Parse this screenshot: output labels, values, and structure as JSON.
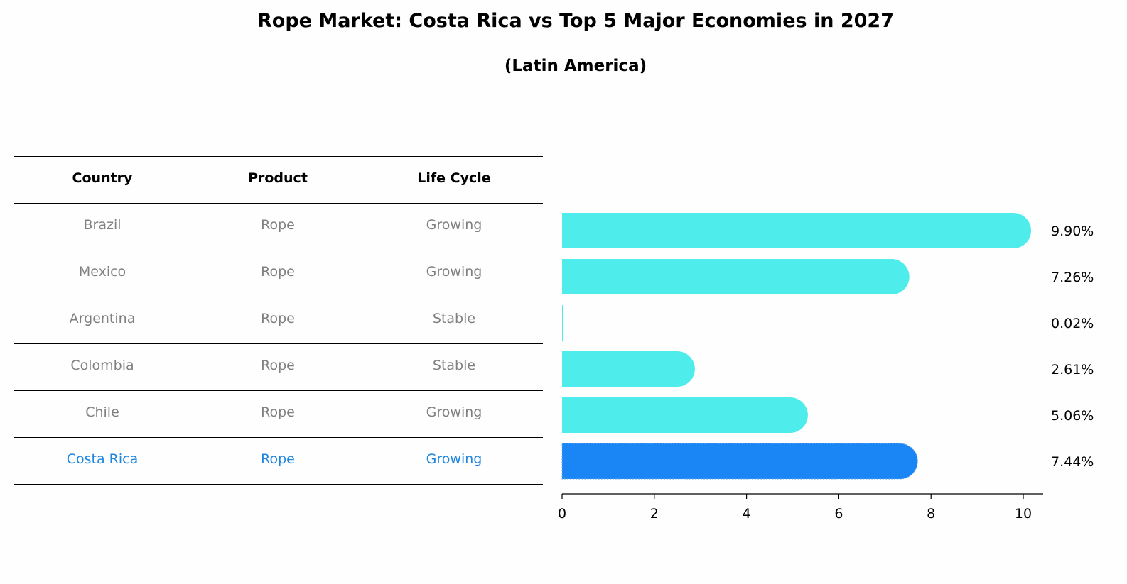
{
  "title": "Rope Market: Costa Rica vs Top 5 Major Economies in 2027",
  "subtitle": "(Latin America)",
  "table": {
    "headers": [
      "Country",
      "Product",
      "Life Cycle"
    ],
    "rows": [
      {
        "country": "Brazil",
        "product": "Rope",
        "life_cycle": "Growing"
      },
      {
        "country": "Mexico",
        "product": "Rope",
        "life_cycle": "Growing"
      },
      {
        "country": "Argentina",
        "product": "Rope",
        "life_cycle": "Stable"
      },
      {
        "country": "Colombia",
        "product": "Rope",
        "life_cycle": "Stable"
      },
      {
        "country": "Chile",
        "product": "Rope",
        "life_cycle": "Growing"
      },
      {
        "country": "Costa Rica",
        "product": "Rope",
        "life_cycle": "Growing"
      }
    ]
  },
  "colors": {
    "bar": "#4eecea",
    "highlight": "#1a86f5",
    "text_muted": "#808080",
    "highlight_text": "#1f86e0"
  },
  "chart_data": {
    "type": "bar",
    "orientation": "horizontal",
    "categories": [
      "Brazil",
      "Mexico",
      "Argentina",
      "Colombia",
      "Chile",
      "Costa Rica"
    ],
    "values": [
      9.9,
      7.26,
      0.02,
      2.61,
      5.06,
      7.44
    ],
    "labels": [
      "9.90%",
      "7.26%",
      "0.02%",
      "2.61%",
      "5.06%",
      "7.44%"
    ],
    "highlight": "Costa Rica",
    "xlim": [
      0,
      10
    ],
    "xticks": [
      0,
      2,
      4,
      6,
      8,
      10
    ],
    "xtick_labels": [
      "0",
      "2",
      "4",
      "6",
      "8",
      "10"
    ],
    "title": "Rope Market: Costa Rica vs Top 5 Major Economies in 2027",
    "xlabel": "",
    "ylabel": ""
  }
}
